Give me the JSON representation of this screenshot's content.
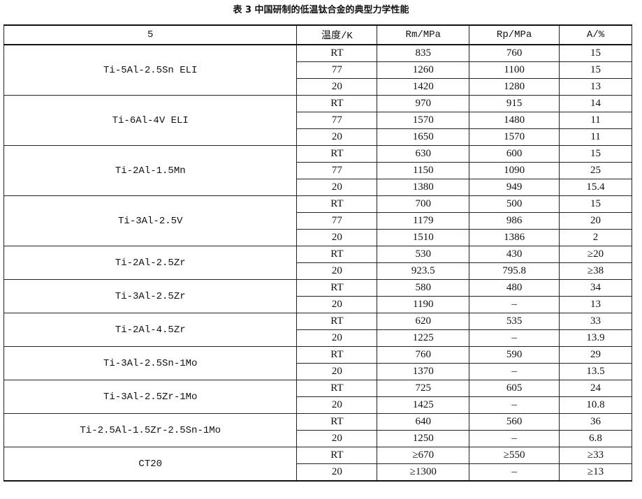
{
  "title": "表 3   中国研制的低温钛合金的典型力学性能",
  "headers": [
    "5",
    "温度/K",
    "Rm/MPa",
    "Rp/MPa",
    "A/%"
  ],
  "groups": [
    {
      "alloy": "Ti-5Al-2.5Sn ELI",
      "rows": [
        [
          "RT",
          "835",
          "760",
          "15"
        ],
        [
          "77",
          "1260",
          "1100",
          "15"
        ],
        [
          "20",
          "1420",
          "1280",
          "13"
        ]
      ]
    },
    {
      "alloy": "Ti-6Al-4V ELI",
      "rows": [
        [
          "RT",
          "970",
          "915",
          "14"
        ],
        [
          "77",
          "1570",
          "1480",
          "11"
        ],
        [
          "20",
          "1650",
          "1570",
          "11"
        ]
      ]
    },
    {
      "alloy": "Ti-2Al-1.5Mn",
      "rows": [
        [
          "RT",
          "630",
          "600",
          "15"
        ],
        [
          "77",
          "1150",
          "1090",
          "25"
        ],
        [
          "20",
          "1380",
          "949",
          "15.4"
        ]
      ]
    },
    {
      "alloy": "Ti-3Al-2.5V",
      "rows": [
        [
          "RT",
          "700",
          "500",
          "15"
        ],
        [
          "77",
          "1179",
          "986",
          "20"
        ],
        [
          "20",
          "1510",
          "1386",
          "2"
        ]
      ]
    },
    {
      "alloy": "Ti-2Al-2.5Zr",
      "rows": [
        [
          "RT",
          "530",
          "430",
          "≥20"
        ],
        [
          "20",
          "923.5",
          "795.8",
          "≥38"
        ]
      ]
    },
    {
      "alloy": "Ti-3Al-2.5Zr",
      "rows": [
        [
          "RT",
          "580",
          "480",
          "34"
        ],
        [
          "20",
          "1190",
          "–",
          "13"
        ]
      ]
    },
    {
      "alloy": "Ti-2Al-4.5Zr",
      "rows": [
        [
          "RT",
          "620",
          "535",
          "33"
        ],
        [
          "20",
          "1225",
          "–",
          "13.9"
        ]
      ]
    },
    {
      "alloy": "Ti-3Al-2.5Sn-1Mo",
      "rows": [
        [
          "RT",
          "760",
          "590",
          "29"
        ],
        [
          "20",
          "1370",
          "–",
          "13.5"
        ]
      ]
    },
    {
      "alloy": "Ti-3Al-2.5Zr-1Mo",
      "rows": [
        [
          "RT",
          "725",
          "605",
          "24"
        ],
        [
          "20",
          "1425",
          "–",
          "10.8"
        ]
      ]
    },
    {
      "alloy": "Ti-2.5Al-1.5Zr-2.5Sn-1Mo",
      "rows": [
        [
          "RT",
          "640",
          "560",
          "36"
        ],
        [
          "20",
          "1250",
          "–",
          "6.8"
        ]
      ]
    },
    {
      "alloy": "CT20",
      "rows": [
        [
          "RT",
          "≥670",
          "≥550",
          "≥33"
        ],
        [
          "20",
          "≥1300",
          "–",
          "≥13"
        ]
      ]
    }
  ]
}
